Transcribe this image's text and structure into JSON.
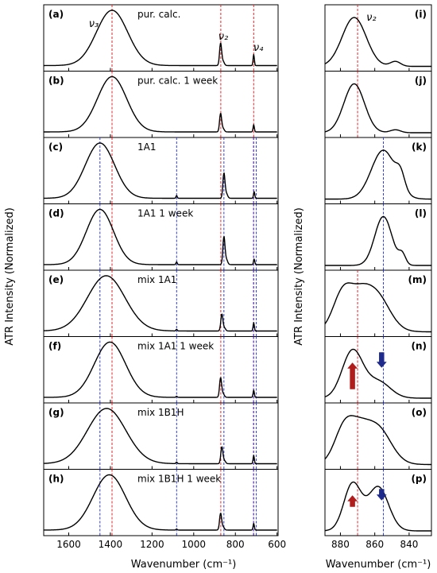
{
  "chart_data": {
    "type": "line",
    "ylabel_left": "ATR Intensity (Normalized)",
    "ylabel_right": "ATR Intensity (Normalized)",
    "xlabel_left": "Wavenumber (cm⁻¹)",
    "xlabel_right": "Wavenumber (cm⁻¹)",
    "left_xlim": [
      1720,
      595
    ],
    "left_xticks": [
      1600,
      1400,
      1200,
      1000,
      800,
      600
    ],
    "right_xlim": [
      889,
      827
    ],
    "right_xticks": [
      880,
      860,
      840
    ],
    "ref_lines_red": [
      1392,
      870,
      712
    ],
    "ref_lines_blue_left": [
      1450,
      1082,
      855,
      713,
      700
    ],
    "ref_lines_blue_right": [
      855
    ],
    "colors": {
      "red_line": "#e8252b",
      "blue_line": "#2d3de0",
      "arrow_red": "#b01c1c",
      "arrow_blue": "#1e2a8c",
      "spectrum": "#000000"
    },
    "peak_annotations": [
      {
        "label": "ν₃",
        "panel": "a",
        "wavenumber": 1480
      },
      {
        "label": "ν₂",
        "panel": "a",
        "wavenumber": 858
      },
      {
        "label": "ν₄",
        "panel": "a",
        "wavenumber": 690
      },
      {
        "label": "ν₂",
        "panel": "i",
        "wavenumber": 862
      }
    ],
    "arrows": [
      {
        "panel": "n",
        "direction": "up",
        "color": "red",
        "wavenumber": 873
      },
      {
        "panel": "n",
        "direction": "down",
        "color": "blue",
        "wavenumber": 856
      },
      {
        "panel": "p",
        "direction": "up",
        "color": "red",
        "wavenumber": 873
      },
      {
        "panel": "p",
        "direction": "down",
        "color": "blue",
        "wavenumber": 856
      }
    ],
    "left_panels": [
      {
        "letter": "(a)",
        "name": "pur. calc.",
        "v3_center": 1392,
        "v3_width": 75,
        "v2_center": 871,
        "v2_height": 0.4,
        "v4_center": 712,
        "v4_height": 0.2,
        "extra_1082": 0
      },
      {
        "letter": "(b)",
        "name": "pur. calc. 1 week",
        "v3_center": 1392,
        "v3_width": 70,
        "v2_center": 871,
        "v2_height": 0.33,
        "v4_center": 712,
        "v4_height": 0.13,
        "extra_1082": 0
      },
      {
        "letter": "(c)",
        "name": "1A1",
        "v3_center": 1450,
        "v3_width": 70,
        "v2_center": 855,
        "v2_height": 0.45,
        "v4_center": 710,
        "v4_height": 0.12,
        "extra_1082": 0.05
      },
      {
        "letter": "(d)",
        "name": "1A1 1 week",
        "v3_center": 1450,
        "v3_width": 65,
        "v2_center": 855,
        "v2_height": 0.5,
        "v4_center": 710,
        "v4_height": 0.1,
        "extra_1082": 0.05
      },
      {
        "letter": "(e)",
        "name": "mix 1A1",
        "v3_center": 1420,
        "v3_width": 90,
        "v2_center": 865,
        "v2_height": 0.3,
        "v4_center": 712,
        "v4_height": 0.15,
        "extra_1082": 0.03
      },
      {
        "letter": "(f)",
        "name": "mix 1A1 1 week",
        "v3_center": 1402,
        "v3_width": 75,
        "v2_center": 871,
        "v2_height": 0.35,
        "v4_center": 712,
        "v4_height": 0.13,
        "extra_1082": 0.02
      },
      {
        "letter": "(g)",
        "name": "mix 1B1H",
        "v3_center": 1418,
        "v3_width": 92,
        "v2_center": 865,
        "v2_height": 0.3,
        "v4_center": 712,
        "v4_height": 0.15,
        "extra_1082": 0.03
      },
      {
        "letter": "(h)",
        "name": "mix 1B1H 1 week",
        "v3_center": 1405,
        "v3_width": 78,
        "v2_center": 871,
        "v2_height": 0.3,
        "v4_center": 712,
        "v4_height": 0.12,
        "extra_1082": 0.02
      }
    ],
    "right_panels": [
      {
        "letter": "(i)",
        "peaks": [
          {
            "c": 872,
            "w": 7,
            "h": 1.0
          },
          {
            "c": 848,
            "w": 3,
            "h": 0.1
          }
        ]
      },
      {
        "letter": "(j)",
        "peaks": [
          {
            "c": 872,
            "w": 6,
            "h": 1.0
          },
          {
            "c": 848,
            "w": 3,
            "h": 0.06
          }
        ]
      },
      {
        "letter": "(k)",
        "peaks": [
          {
            "c": 855,
            "w": 7,
            "h": 1.0
          },
          {
            "c": 845,
            "w": 2.5,
            "h": 0.3
          }
        ]
      },
      {
        "letter": "(l)",
        "peaks": [
          {
            "c": 855,
            "w": 5,
            "h": 1.0
          },
          {
            "c": 844,
            "w": 2,
            "h": 0.2
          }
        ]
      },
      {
        "letter": "(m)",
        "peaks": [
          {
            "c": 878,
            "w": 6,
            "h": 0.9
          },
          {
            "c": 860,
            "w": 8,
            "h": 0.85
          },
          {
            "c": 868,
            "w": 5,
            "h": 0.3
          }
        ]
      },
      {
        "letter": "(n)",
        "peaks": [
          {
            "c": 873,
            "w": 6,
            "h": 1.0
          },
          {
            "c": 858,
            "w": 7,
            "h": 0.35
          }
        ]
      },
      {
        "letter": "(o)",
        "peaks": [
          {
            "c": 877,
            "w": 6,
            "h": 0.9
          },
          {
            "c": 859,
            "w": 8,
            "h": 0.85
          },
          {
            "c": 868,
            "w": 5,
            "h": 0.3
          }
        ]
      },
      {
        "letter": "(p)",
        "peaks": [
          {
            "c": 873,
            "w": 5,
            "h": 0.85
          },
          {
            "c": 858,
            "w": 6,
            "h": 0.8
          }
        ]
      }
    ]
  }
}
